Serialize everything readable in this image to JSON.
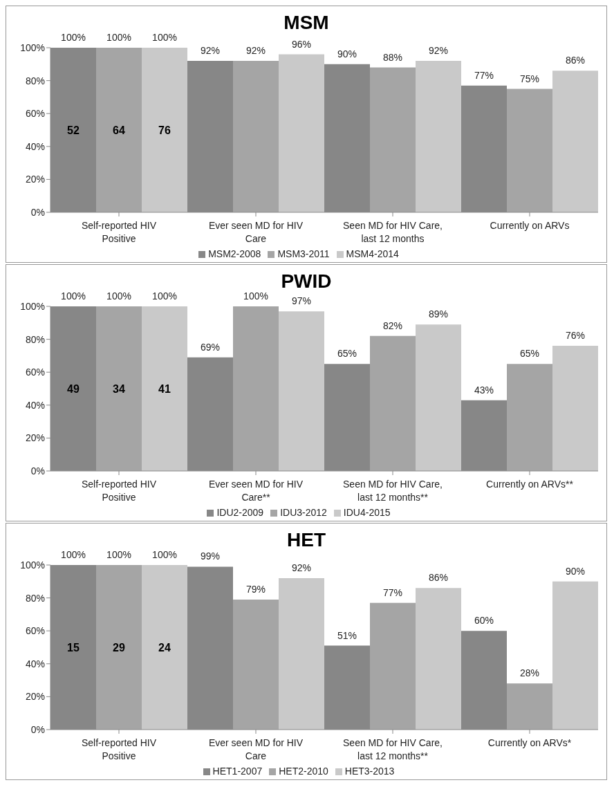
{
  "chart_data": [
    {
      "type": "bar",
      "title": "MSM",
      "categories": [
        "Self-reported HIV Positive",
        "Ever seen MD for HIV Care",
        "Seen MD for HIV Care, last 12 months",
        "Currently on ARVs"
      ],
      "series": [
        {
          "name": "MSM2-2008",
          "color": "#878787",
          "values": [
            100,
            92,
            90,
            77
          ],
          "value_labels": [
            "100%",
            "92%",
            "90%",
            "77%"
          ]
        },
        {
          "name": "MSM3-2011",
          "color": "#a5a5a5",
          "values": [
            100,
            92,
            88,
            75
          ],
          "value_labels": [
            "100%",
            "92%",
            "88%",
            "75%"
          ]
        },
        {
          "name": "MSM4-2014",
          "color": "#c9c9c9",
          "values": [
            100,
            96,
            92,
            86
          ],
          "value_labels": [
            "100%",
            "96%",
            "92%",
            "86%"
          ]
        }
      ],
      "annotations": [
        "52",
        "64",
        "76"
      ],
      "ylim": [
        0,
        100
      ],
      "yticks": [
        {
          "value": 0,
          "label": "0%"
        },
        {
          "value": 20,
          "label": "20%"
        },
        {
          "value": 40,
          "label": "40%"
        },
        {
          "value": 60,
          "label": "60%"
        },
        {
          "value": 80,
          "label": "80%"
        },
        {
          "value": 100,
          "label": "100%"
        }
      ],
      "grid": false,
      "legend": "bottom"
    },
    {
      "type": "bar",
      "title": "PWID",
      "categories": [
        "Self-reported HIV Positive",
        "Ever seen MD for HIV Care**",
        "Seen MD for HIV Care, last 12 months**",
        "Currently on ARVs**"
      ],
      "series": [
        {
          "name": "IDU2-2009",
          "color": "#878787",
          "values": [
            100,
            69,
            65,
            43
          ],
          "value_labels": [
            "100%",
            "69%",
            "65%",
            "43%"
          ]
        },
        {
          "name": "IDU3-2012",
          "color": "#a5a5a5",
          "values": [
            100,
            100,
            82,
            65
          ],
          "value_labels": [
            "100%",
            "100%",
            "82%",
            "65%"
          ]
        },
        {
          "name": "IDU4-2015",
          "color": "#c9c9c9",
          "values": [
            100,
            97,
            89,
            76
          ],
          "value_labels": [
            "100%",
            "97%",
            "89%",
            "76%"
          ]
        }
      ],
      "annotations": [
        "49",
        "34",
        "41"
      ],
      "ylim": [
        0,
        100
      ],
      "yticks": [
        {
          "value": 0,
          "label": "0%"
        },
        {
          "value": 20,
          "label": "20%"
        },
        {
          "value": 40,
          "label": "40%"
        },
        {
          "value": 60,
          "label": "60%"
        },
        {
          "value": 80,
          "label": "80%"
        },
        {
          "value": 100,
          "label": "100%"
        }
      ],
      "grid": false,
      "legend": "bottom"
    },
    {
      "type": "bar",
      "title": "HET",
      "categories": [
        "Self-reported HIV Positive",
        "Ever seen MD for HIV Care",
        "Seen MD for HIV Care, last 12 months**",
        "Currently on ARVs*"
      ],
      "series": [
        {
          "name": "HET1-2007",
          "color": "#878787",
          "values": [
            100,
            99,
            51,
            60
          ],
          "value_labels": [
            "100%",
            "99%",
            "51%",
            "60%"
          ]
        },
        {
          "name": "HET2-2010",
          "color": "#a5a5a5",
          "values": [
            100,
            79,
            77,
            28
          ],
          "value_labels": [
            "100%",
            "79%",
            "77%",
            "28%"
          ]
        },
        {
          "name": "HET3-2013",
          "color": "#c9c9c9",
          "values": [
            100,
            92,
            86,
            90
          ],
          "value_labels": [
            "100%",
            "92%",
            "86%",
            "90%"
          ]
        }
      ],
      "annotations": [
        "15",
        "29",
        "24"
      ],
      "ylim": [
        0,
        100
      ],
      "yticks": [
        {
          "value": 0,
          "label": "0%"
        },
        {
          "value": 20,
          "label": "20%"
        },
        {
          "value": 40,
          "label": "40%"
        },
        {
          "value": 60,
          "label": "60%"
        },
        {
          "value": 80,
          "label": "80%"
        },
        {
          "value": 100,
          "label": "100%"
        }
      ],
      "grid": false,
      "legend": "bottom"
    }
  ]
}
